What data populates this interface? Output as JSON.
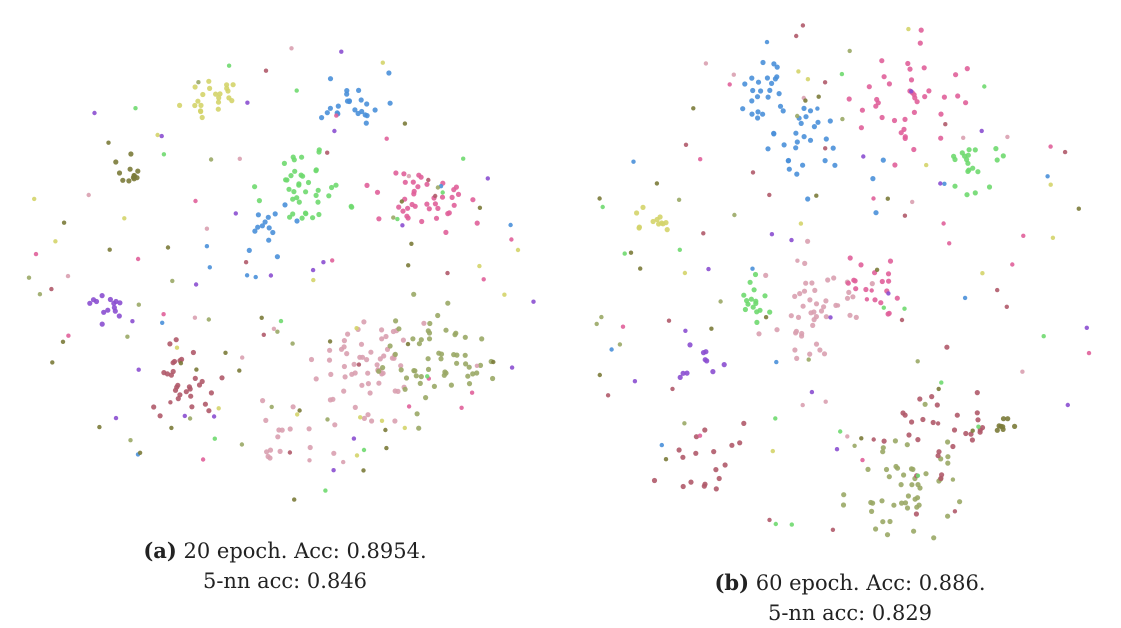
{
  "figure": {
    "panels": [
      {
        "letter": "(a)",
        "caption_line1": "20 epoch. Acc: 0.8954.",
        "caption_line2": "5-nn acc: 0.846"
      },
      {
        "letter": "(b)",
        "caption_line1": "60 epoch. Acc: 0.886.",
        "caption_line2": "5-nn acc: 0.829"
      }
    ]
  },
  "chart_data": [
    {
      "type": "scatter",
      "title": "",
      "xlabel": "",
      "ylabel": "",
      "axes_visible": false,
      "grid": false,
      "legend": "none",
      "class_colors": [
        "#d4d46a",
        "#4a90d9",
        "#7b7b3a",
        "#8b4fd0",
        "#b05a6a",
        "#6fd96f",
        "#e0609a",
        "#d9a0b0",
        "#9aa866"
      ],
      "clusters": [
        {
          "color": "#d4d46a",
          "cx": 0.37,
          "cy": 0.84,
          "spread": 0.025,
          "n": 22
        },
        {
          "color": "#4a90d9",
          "cx": 0.64,
          "cy": 0.83,
          "spread": 0.03,
          "n": 24
        },
        {
          "color": "#7b7b3a",
          "cx": 0.21,
          "cy": 0.68,
          "spread": 0.015,
          "n": 12
        },
        {
          "color": "#6fd96f",
          "cx": 0.55,
          "cy": 0.65,
          "spread": 0.04,
          "n": 40
        },
        {
          "color": "#e0609a",
          "cx": 0.78,
          "cy": 0.62,
          "spread": 0.04,
          "n": 40
        },
        {
          "color": "#4a90d9",
          "cx": 0.47,
          "cy": 0.57,
          "spread": 0.03,
          "n": 14
        },
        {
          "color": "#8b4fd0",
          "cx": 0.17,
          "cy": 0.4,
          "spread": 0.02,
          "n": 14
        },
        {
          "color": "#b05a6a",
          "cx": 0.32,
          "cy": 0.26,
          "spread": 0.04,
          "n": 30
        },
        {
          "color": "#d9a0b0",
          "cx": 0.66,
          "cy": 0.28,
          "spread": 0.05,
          "n": 60
        },
        {
          "color": "#9aa866",
          "cx": 0.8,
          "cy": 0.3,
          "spread": 0.05,
          "n": 55
        },
        {
          "color": "#d9a0b0",
          "cx": 0.52,
          "cy": 0.12,
          "spread": 0.03,
          "n": 14
        }
      ],
      "scatter_points": 140
    },
    {
      "type": "scatter",
      "title": "",
      "xlabel": "",
      "ylabel": "",
      "axes_visible": false,
      "grid": false,
      "legend": "none",
      "class_colors": [
        "#d4d46a",
        "#4a90d9",
        "#7b7b3a",
        "#8b4fd0",
        "#b05a6a",
        "#6fd96f",
        "#e0609a",
        "#d9a0b0",
        "#9aa866"
      ],
      "clusters": [
        {
          "color": "#4a90d9",
          "cx": 0.34,
          "cy": 0.86,
          "spread": 0.03,
          "n": 24
        },
        {
          "color": "#4a90d9",
          "cx": 0.45,
          "cy": 0.76,
          "spread": 0.05,
          "n": 30
        },
        {
          "color": "#e0609a",
          "cx": 0.62,
          "cy": 0.85,
          "spread": 0.05,
          "n": 40
        },
        {
          "color": "#6fd96f",
          "cx": 0.75,
          "cy": 0.72,
          "spread": 0.03,
          "n": 20
        },
        {
          "color": "#d4d46a",
          "cx": 0.13,
          "cy": 0.61,
          "spread": 0.02,
          "n": 12
        },
        {
          "color": "#d9a0b0",
          "cx": 0.43,
          "cy": 0.45,
          "spread": 0.05,
          "n": 45
        },
        {
          "color": "#e0609a",
          "cx": 0.56,
          "cy": 0.5,
          "spread": 0.03,
          "n": 18
        },
        {
          "color": "#6fd96f",
          "cx": 0.34,
          "cy": 0.45,
          "spread": 0.03,
          "n": 16
        },
        {
          "color": "#8b4fd0",
          "cx": 0.22,
          "cy": 0.35,
          "spread": 0.02,
          "n": 10
        },
        {
          "color": "#b05a6a",
          "cx": 0.25,
          "cy": 0.14,
          "spread": 0.04,
          "n": 18
        },
        {
          "color": "#9aa866",
          "cx": 0.62,
          "cy": 0.1,
          "spread": 0.05,
          "n": 50
        },
        {
          "color": "#b05a6a",
          "cx": 0.68,
          "cy": 0.2,
          "spread": 0.05,
          "n": 30
        },
        {
          "color": "#7b7b3a",
          "cx": 0.82,
          "cy": 0.22,
          "spread": 0.01,
          "n": 8
        }
      ],
      "scatter_points": 130
    }
  ]
}
